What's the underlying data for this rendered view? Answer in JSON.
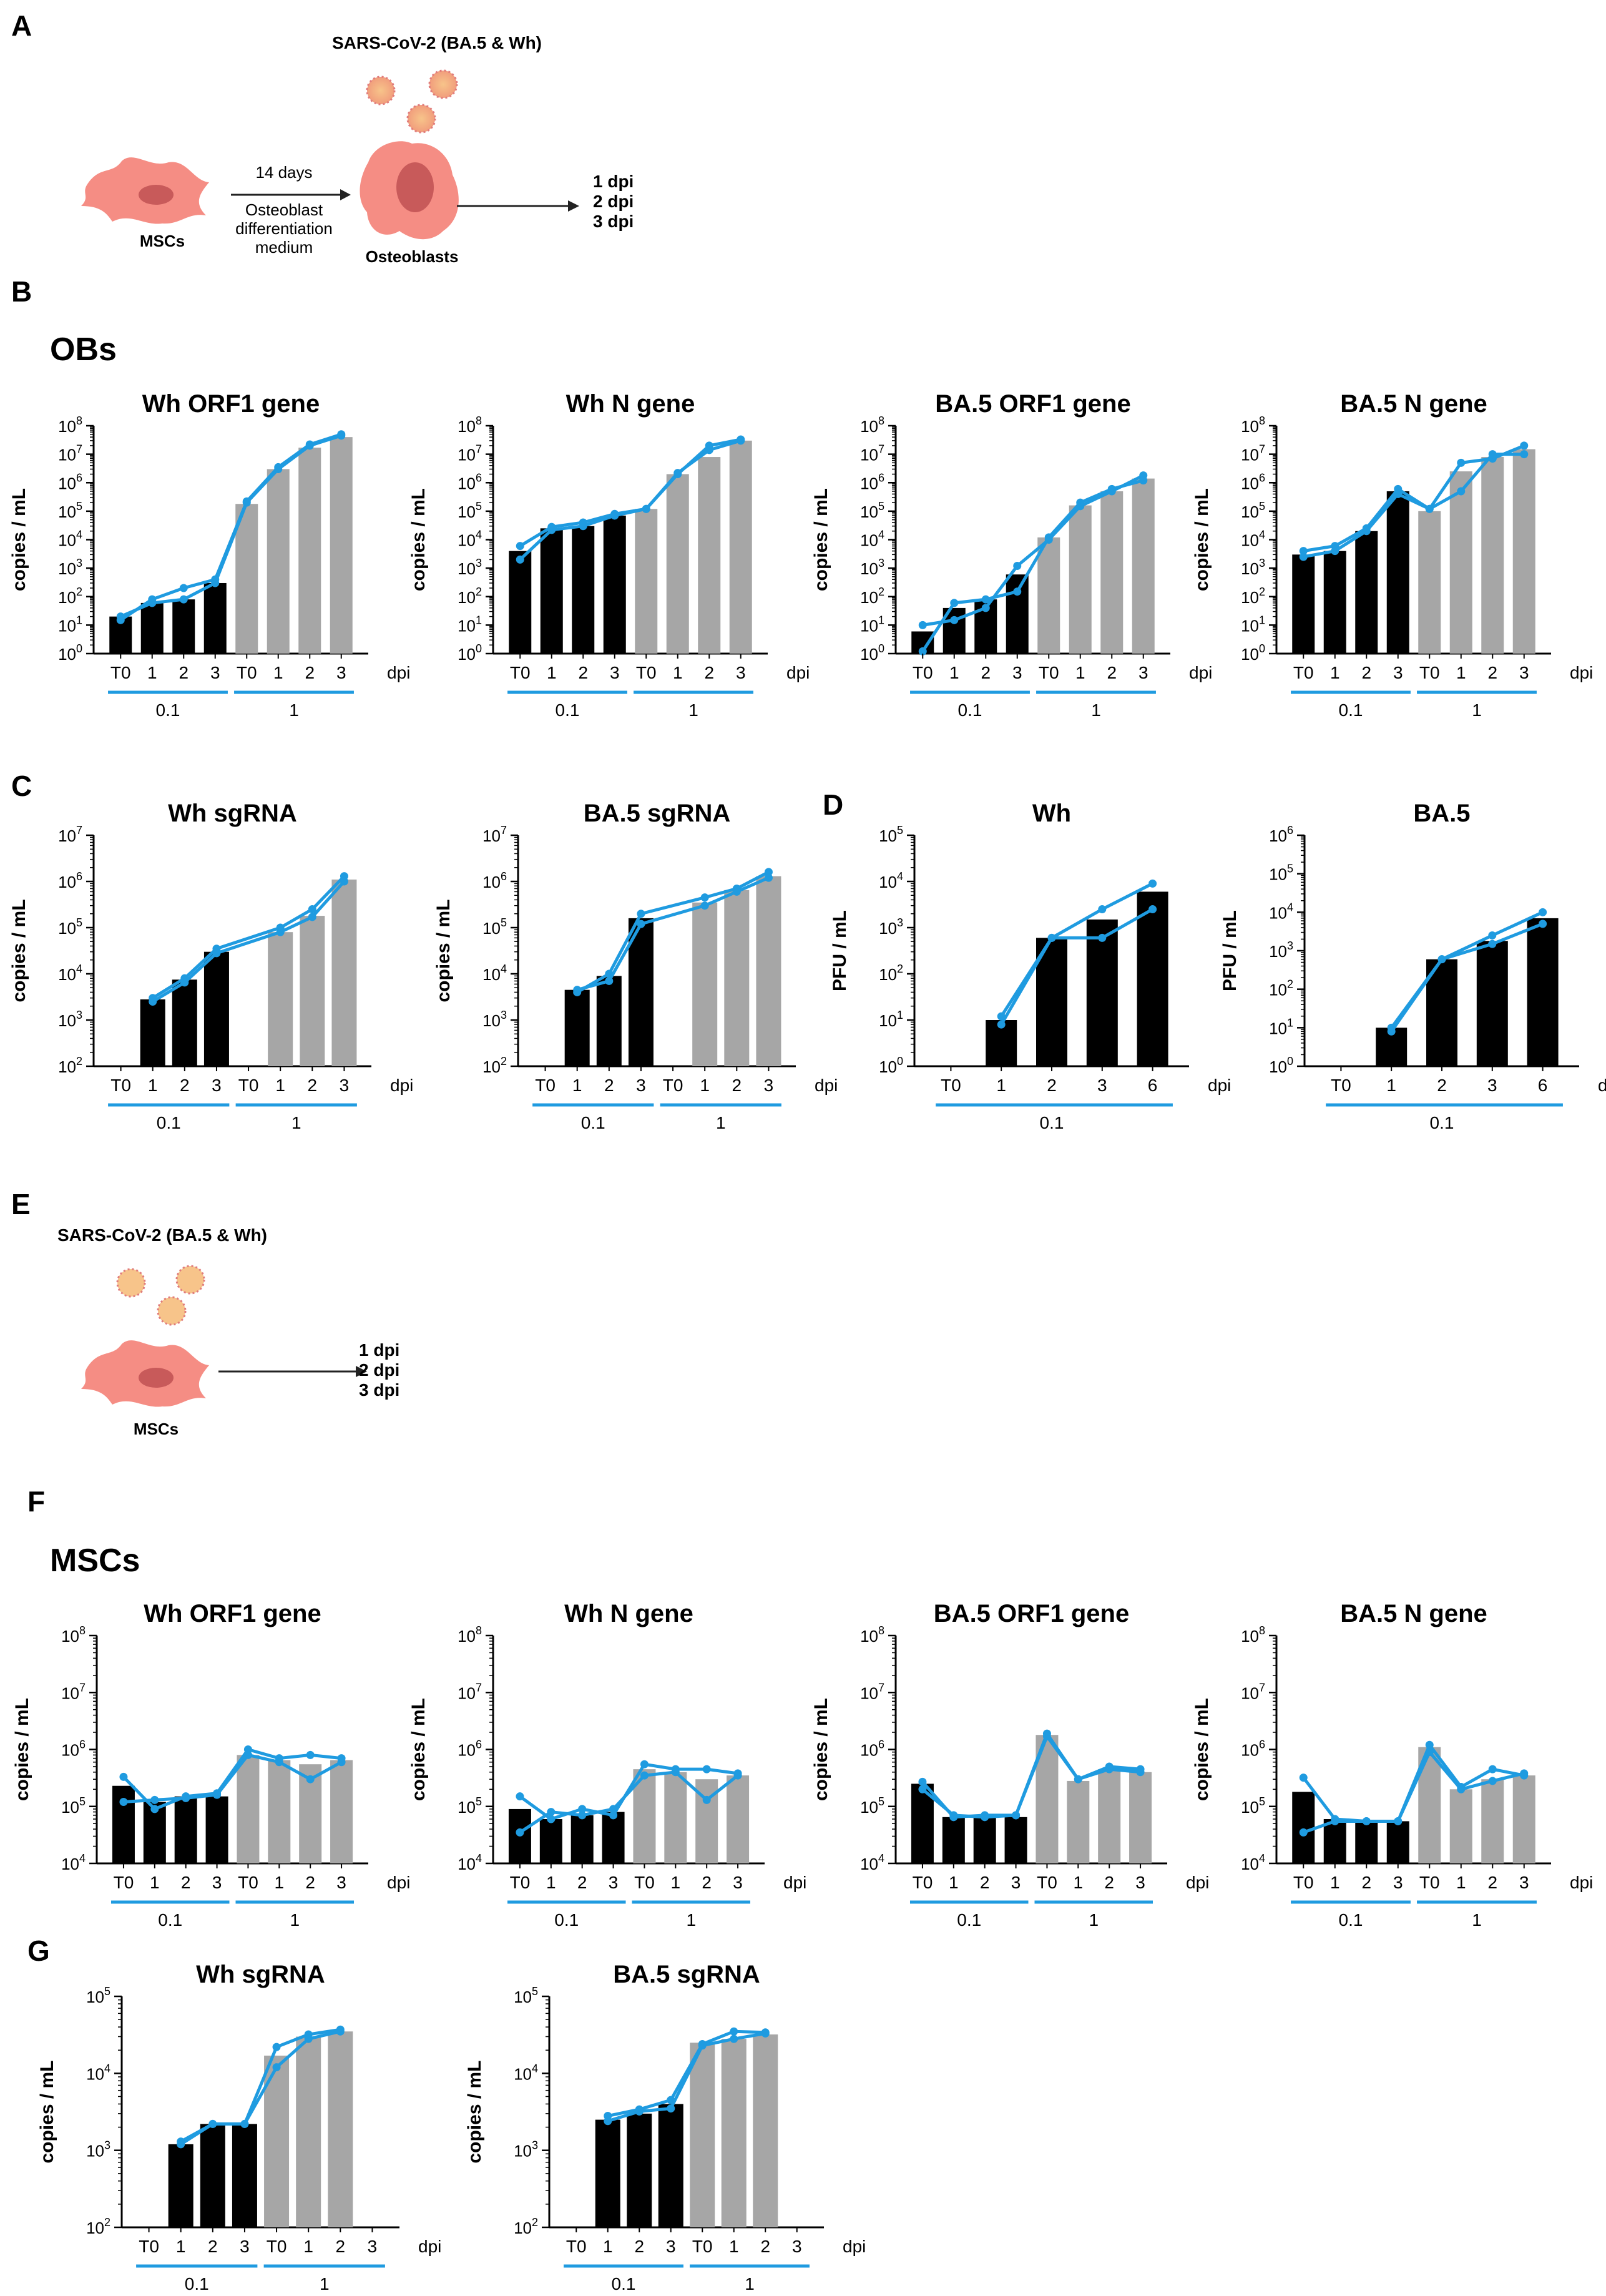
{
  "panels": {
    "A": "A",
    "B": "B",
    "C": "C",
    "D": "D",
    "E": "E",
    "F": "F",
    "G": "G"
  },
  "sections": {
    "obs": "OBs",
    "mscs": "MSCs"
  },
  "schematicA": {
    "virus": "SARS-CoV-2 (BA.5 & Wh)",
    "days": "14 days",
    "medium1": "Osteoblast",
    "medium2": "differentiation",
    "medium3": "medium",
    "msc": "MSCs",
    "ob": "Osteoblasts",
    "dpi1": "1 dpi",
    "dpi2": "2 dpi",
    "dpi3": "3 dpi"
  },
  "schematicE": {
    "virus": "SARS-CoV-2 (BA.5 & Wh)",
    "msc": "MSCs",
    "dpi1": "1 dpi",
    "dpi2": "2 dpi",
    "dpi3": "3 dpi"
  },
  "colors": {
    "black_bar": "#000000",
    "grey_bar": "#a6a6a6",
    "line": "#1f9be0",
    "group": "#1f9be0"
  },
  "chart_data": [
    {
      "id": "ob_wh_orf1",
      "type": "bar",
      "title": "Wh ORF1 gene",
      "ylabel": "copies / mL",
      "xlabel": "dpi",
      "yexp": [
        0,
        8
      ],
      "categories": [
        "T0",
        "1",
        "2",
        "3",
        "T0",
        "1",
        "2",
        "3"
      ],
      "groups": [
        "0.1",
        "1"
      ],
      "values": [
        20,
        60,
        80,
        300,
        180000,
        3000000,
        17000000,
        40000000
      ],
      "series": [
        {
          "name": "rep1",
          "values": [
            15,
            80,
            200,
            400,
            220000,
            3500000,
            22000000,
            50000000
          ]
        },
        {
          "name": "rep2",
          "values": [
            20,
            60,
            80,
            300,
            200000,
            3000000,
            20000000,
            45000000
          ]
        }
      ]
    },
    {
      "id": "ob_wh_n",
      "type": "bar",
      "title": "Wh N gene",
      "ylabel": "copies / mL",
      "xlabel": "dpi",
      "yexp": [
        0,
        8
      ],
      "categories": [
        "T0",
        "1",
        "2",
        "3",
        "T0",
        "1",
        "2",
        "3"
      ],
      "groups": [
        "0.1",
        "1"
      ],
      "values": [
        4000,
        25000,
        30000,
        70000,
        120000,
        2000000,
        8000000,
        30000000
      ],
      "series": [
        {
          "name": "rep1",
          "values": [
            6000,
            28000,
            40000,
            80000,
            120000,
            2200000,
            14000000,
            30000000
          ]
        },
        {
          "name": "rep2",
          "values": [
            2000,
            22000,
            30000,
            70000,
            120000,
            2000000,
            20000000,
            33000000
          ]
        }
      ]
    },
    {
      "id": "ob_ba5_orf1",
      "type": "bar",
      "title": "BA.5 ORF1 gene",
      "ylabel": "copies / mL",
      "xlabel": "dpi",
      "yexp": [
        0,
        8
      ],
      "categories": [
        "T0",
        "1",
        "2",
        "3",
        "T0",
        "1",
        "2",
        "3"
      ],
      "groups": [
        "0.1",
        "1"
      ],
      "values": [
        6,
        40,
        80,
        600,
        12000,
        160000,
        500000,
        1400000
      ],
      "series": [
        {
          "name": "rep1",
          "values": [
            10,
            15,
            40,
            1200,
            10000,
            150000,
            500000,
            1800000
          ]
        },
        {
          "name": "rep2",
          "values": [
            1.2,
            60,
            80,
            150,
            12000,
            200000,
            600000,
            1200000
          ]
        }
      ]
    },
    {
      "id": "ob_ba5_n",
      "type": "bar",
      "title": "BA.5 N gene",
      "ylabel": "copies / mL",
      "xlabel": "dpi",
      "yexp": [
        0,
        8
      ],
      "categories": [
        "T0",
        "1",
        "2",
        "3",
        "T0",
        "1",
        "2",
        "3"
      ],
      "groups": [
        "0.1",
        "1"
      ],
      "values": [
        3000,
        4000,
        20000,
        500000,
        100000,
        2500000,
        8000000,
        15000000
      ],
      "series": [
        {
          "name": "rep1",
          "values": [
            4000,
            6000,
            25000,
            600000,
            120000,
            5000000,
            7000000,
            20000000
          ]
        },
        {
          "name": "rep2",
          "values": [
            2500,
            4000,
            20000,
            400000,
            120000,
            500000,
            10000000,
            10000000
          ]
        }
      ]
    },
    {
      "id": "ob_wh_sg",
      "type": "bar",
      "title": "Wh sgRNA",
      "ylabel": "copies / mL",
      "xlabel": "dpi",
      "yexp": [
        2,
        7
      ],
      "categories": [
        "T0",
        "1",
        "2",
        "3",
        "T0",
        "1",
        "2",
        "3"
      ],
      "groups": [
        "0.1",
        "1"
      ],
      "values": [
        null,
        2800,
        7500,
        30000,
        null,
        80000,
        180000,
        1100000
      ],
      "series": [
        {
          "name": "rep1",
          "values": [
            null,
            3000,
            8000,
            35000,
            null,
            100000,
            250000,
            1300000
          ]
        },
        {
          "name": "rep2",
          "values": [
            null,
            2500,
            6500,
            28000,
            null,
            80000,
            170000,
            1000000
          ]
        }
      ]
    },
    {
      "id": "ob_ba5_sg",
      "type": "bar",
      "title": "BA.5 sgRNA",
      "ylabel": "copies / mL",
      "xlabel": "dpi",
      "yexp": [
        2,
        7
      ],
      "categories": [
        "T0",
        "1",
        "2",
        "3",
        "T0",
        "1",
        "2",
        "3"
      ],
      "groups": [
        "0.1",
        "1"
      ],
      "values": [
        null,
        4500,
        9000,
        160000,
        null,
        350000,
        650000,
        1300000
      ],
      "series": [
        {
          "name": "rep1",
          "values": [
            null,
            4000,
            10000,
            200000,
            null,
            450000,
            700000,
            1600000
          ]
        },
        {
          "name": "rep2",
          "values": [
            null,
            4500,
            7000,
            120000,
            null,
            300000,
            600000,
            1200000
          ]
        }
      ]
    },
    {
      "id": "ob_wh_pfu",
      "type": "bar",
      "title": "Wh",
      "ylabel": "PFU / mL",
      "xlabel": "dpi",
      "yexp": [
        0,
        5
      ],
      "categories": [
        "T0",
        "1",
        "2",
        "3",
        "6"
      ],
      "groups": [
        "0.1"
      ],
      "values": [
        null,
        10,
        600,
        1500,
        6000
      ],
      "series": [
        {
          "name": "rep1",
          "values": [
            null,
            12,
            600,
            2500,
            9000
          ]
        },
        {
          "name": "rep2",
          "values": [
            null,
            8,
            600,
            600,
            2500
          ]
        }
      ]
    },
    {
      "id": "ob_ba5_pfu",
      "type": "bar",
      "title": "BA.5",
      "ylabel": "PFU / mL",
      "xlabel": "dpi",
      "yexp": [
        0,
        6
      ],
      "categories": [
        "T0",
        "1",
        "2",
        "3",
        "6"
      ],
      "groups": [
        "0.1"
      ],
      "values": [
        null,
        10,
        600,
        1800,
        7000
      ],
      "series": [
        {
          "name": "rep1",
          "values": [
            null,
            10,
            600,
            2500,
            10000
          ]
        },
        {
          "name": "rep2",
          "values": [
            null,
            8,
            600,
            1500,
            5000
          ]
        }
      ]
    },
    {
      "id": "msc_wh_orf1",
      "type": "bar",
      "title": "Wh ORF1 gene",
      "ylabel": "copies / mL",
      "xlabel": "dpi",
      "yexp": [
        4,
        8
      ],
      "categories": [
        "T0",
        "1",
        "2",
        "3",
        "T0",
        "1",
        "2",
        "3"
      ],
      "groups": [
        "0.1",
        "1"
      ],
      "values": [
        230000,
        120000,
        150000,
        150000,
        800000,
        650000,
        550000,
        650000
      ],
      "series": [
        {
          "name": "rep1",
          "values": [
            330000,
            90000,
            150000,
            170000,
            1000000,
            700000,
            800000,
            700000
          ]
        },
        {
          "name": "rep2",
          "values": [
            120000,
            130000,
            140000,
            160000,
            800000,
            600000,
            300000,
            600000
          ]
        }
      ]
    },
    {
      "id": "msc_wh_n",
      "type": "bar",
      "title": "Wh N gene",
      "ylabel": "copies / mL",
      "xlabel": "dpi",
      "yexp": [
        4,
        8
      ],
      "categories": [
        "T0",
        "1",
        "2",
        "3",
        "T0",
        "1",
        "2",
        "3"
      ],
      "groups": [
        "0.1",
        "1"
      ],
      "values": [
        90000,
        60000,
        70000,
        80000,
        450000,
        400000,
        300000,
        350000
      ],
      "series": [
        {
          "name": "rep1",
          "values": [
            150000,
            60000,
            90000,
            70000,
            550000,
            450000,
            450000,
            380000
          ]
        },
        {
          "name": "rep2",
          "values": [
            35000,
            80000,
            70000,
            90000,
            350000,
            400000,
            130000,
            350000
          ]
        }
      ]
    },
    {
      "id": "msc_ba5_orf1",
      "type": "bar",
      "title": "BA.5 ORF1 gene",
      "ylabel": "copies / mL",
      "xlabel": "dpi",
      "yexp": [
        4,
        8
      ],
      "categories": [
        "T0",
        "1",
        "2",
        "3",
        "T0",
        "1",
        "2",
        "3"
      ],
      "groups": [
        "0.1",
        "1"
      ],
      "values": [
        250000,
        65000,
        65000,
        65000,
        1800000,
        280000,
        450000,
        400000
      ],
      "series": [
        {
          "name": "rep1",
          "values": [
            270000,
            65000,
            70000,
            70000,
            1900000,
            300000,
            500000,
            450000
          ]
        },
        {
          "name": "rep2",
          "values": [
            200000,
            70000,
            65000,
            70000,
            1700000,
            300000,
            450000,
            400000
          ]
        }
      ]
    },
    {
      "id": "msc_ba5_n",
      "type": "bar",
      "title": "BA.5 N gene",
      "ylabel": "copies / mL",
      "xlabel": "dpi",
      "yexp": [
        4,
        8
      ],
      "categories": [
        "T0",
        "1",
        "2",
        "3",
        "T0",
        "1",
        "2",
        "3"
      ],
      "groups": [
        "0.1",
        "1"
      ],
      "values": [
        180000,
        60000,
        55000,
        55000,
        1100000,
        200000,
        300000,
        350000
      ],
      "series": [
        {
          "name": "rep1",
          "values": [
            320000,
            60000,
            55000,
            55000,
            1200000,
            220000,
            450000,
            350000
          ]
        },
        {
          "name": "rep2",
          "values": [
            35000,
            55000,
            55000,
            55000,
            900000,
            200000,
            280000,
            380000
          ]
        }
      ]
    },
    {
      "id": "msc_wh_sg",
      "type": "bar",
      "title": "Wh sgRNA",
      "ylabel": "copies / mL",
      "xlabel": "dpi",
      "yexp": [
        2,
        5
      ],
      "categories": [
        "T0",
        "1",
        "2",
        "3",
        "T0",
        "1",
        "2",
        "3"
      ],
      "groups": [
        "0.1",
        "1"
      ],
      "values": [
        null,
        1200,
        2200,
        2200,
        17000,
        30000,
        35000,
        null
      ],
      "series": [
        {
          "name": "rep1",
          "values": [
            null,
            1300,
            2200,
            2200,
            22000,
            32000,
            37000,
            null
          ]
        },
        {
          "name": "rep2",
          "values": [
            null,
            1200,
            2200,
            2200,
            12000,
            28000,
            35000,
            null
          ]
        }
      ]
    },
    {
      "id": "msc_ba5_sg",
      "type": "bar",
      "title": "BA.5 sgRNA",
      "ylabel": "copies / mL",
      "xlabel": "dpi",
      "yexp": [
        2,
        5
      ],
      "categories": [
        "T0",
        "1",
        "2",
        "3",
        "T0",
        "1",
        "2",
        "3"
      ],
      "groups": [
        "0.1",
        "1"
      ],
      "values": [
        null,
        2500,
        3000,
        4000,
        25000,
        28000,
        32000,
        null
      ],
      "series": [
        {
          "name": "rep1",
          "values": [
            null,
            2800,
            3400,
            4500,
            24000,
            35000,
            34000,
            null
          ]
        },
        {
          "name": "rep2",
          "values": [
            null,
            2400,
            3200,
            3500,
            23000,
            28000,
            33000,
            null
          ]
        }
      ]
    }
  ]
}
